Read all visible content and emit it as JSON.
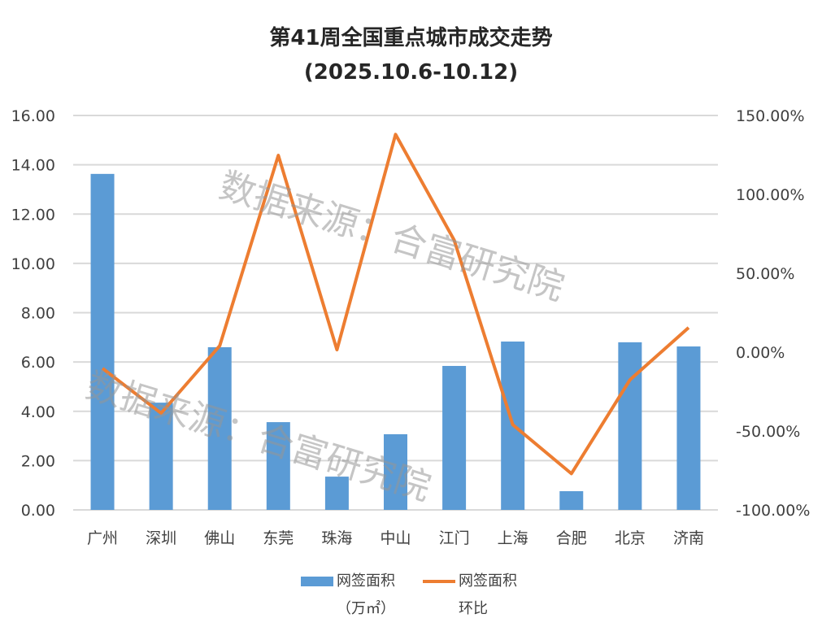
{
  "chart_data": {
    "type": "bar+line",
    "title": "第41周全国重点城市成交走势",
    "subtitle": "(2025.10.6-10.12)",
    "categories": [
      "广州",
      "深圳",
      "佛山",
      "东莞",
      "珠海",
      "中山",
      "江门",
      "上海",
      "合肥",
      "北京",
      "济南"
    ],
    "series": [
      {
        "name": "网签面积（万㎡）",
        "type": "bar",
        "axis": "left",
        "color": "#5B9BD5",
        "values": [
          13.63,
          4.35,
          6.6,
          3.56,
          1.35,
          3.07,
          5.84,
          6.83,
          0.76,
          6.8,
          6.63
        ]
      },
      {
        "name": "网签面积环比",
        "type": "line",
        "axis": "right",
        "color": "#ED7D31",
        "values": [
          -10.3,
          -38.7,
          4.0,
          124.7,
          1.5,
          138.0,
          71.0,
          -46.0,
          -77.0,
          -17.5,
          15.5
        ]
      }
    ],
    "left_axis": {
      "range": [
        0,
        16
      ],
      "ticks": [
        "0.00",
        "2.00",
        "4.00",
        "6.00",
        "8.00",
        "10.00",
        "12.00",
        "14.00",
        "16.00"
      ]
    },
    "right_axis": {
      "range": [
        -100,
        150
      ],
      "unit": "%",
      "ticks": [
        "-100.00%",
        "-50.00%",
        "0.00%",
        "50.00%",
        "100.00%",
        "150.00%"
      ]
    },
    "grid": true,
    "legend_position": "bottom",
    "legend": [
      {
        "label_line1": "网签面积",
        "label_line2": "（万㎡）"
      },
      {
        "label_line1": "网签面积",
        "label_line2": "环比"
      }
    ],
    "watermark": "数据来源：合富研究院"
  }
}
